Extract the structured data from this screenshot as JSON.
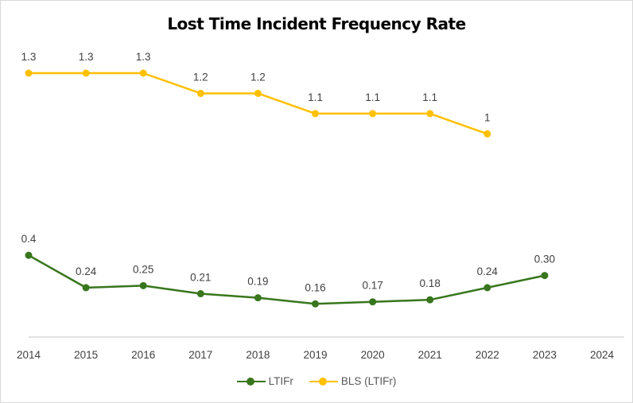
{
  "chart_data": {
    "type": "line",
    "title": "Lost Time Incident Frequency Rate",
    "xlabel": "",
    "ylabel": "",
    "x": [
      2014,
      2015,
      2016,
      2017,
      2018,
      2019,
      2020,
      2021,
      2022,
      2023,
      2024
    ],
    "ylim": [
      0,
      1.4
    ],
    "grid": false,
    "legend_position": "bottom",
    "series": [
      {
        "name": "LTIFr",
        "color": "#38761d",
        "values": [
          0.4,
          0.24,
          0.25,
          0.21,
          0.19,
          0.16,
          0.17,
          0.18,
          0.24,
          0.3,
          null
        ],
        "labels": [
          "0.4",
          "0.24",
          "0.25",
          "0.21",
          "0.19",
          "0.16",
          "0.17",
          "0.18",
          "0.24",
          "0.30",
          null
        ]
      },
      {
        "name": "BLS (LTIFr)",
        "color": "#ffc000",
        "values": [
          1.3,
          1.3,
          1.3,
          1.2,
          1.2,
          1.1,
          1.1,
          1.1,
          1.0,
          null,
          null
        ],
        "labels": [
          "1.3",
          "1.3",
          "1.3",
          "1.2",
          "1.2",
          "1.1",
          "1.1",
          "1.1",
          "1",
          null,
          null
        ]
      }
    ]
  }
}
